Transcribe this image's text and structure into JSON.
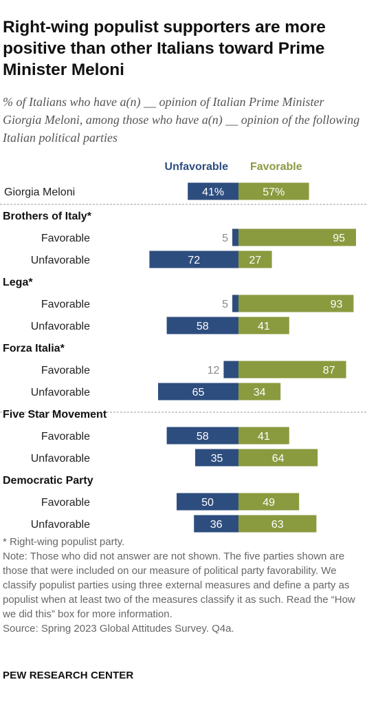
{
  "title": "Right-wing populist supporters are more positive than other Italians toward Prime Minister Meloni",
  "subtitle": "% of Italians who have a(n) __ opinion of Italian Prime Minister Giorgia Meloni, among those who have a(n) __ opinion of the following Italian political parties",
  "colors": {
    "unfavorable": "#2e4d7f",
    "favorable": "#8a9a3f",
    "divider": "#9a9a9a"
  },
  "chart_data": {
    "type": "bar",
    "orientation": "diverging-horizontal",
    "legend": [
      "Unfavorable",
      "Favorable"
    ],
    "total": {
      "label": "Giorgia Meloni",
      "unfavorable": 41,
      "favorable": 57,
      "unfavorable_text": "41%",
      "favorable_text": "57%"
    },
    "groups": [
      {
        "name": "Brothers of Italy*",
        "rows": [
          {
            "label": "Favorable",
            "unfavorable": 5,
            "favorable": 95
          },
          {
            "label": "Unfavorable",
            "unfavorable": 72,
            "favorable": 27
          }
        ]
      },
      {
        "name": "Lega*",
        "rows": [
          {
            "label": "Favorable",
            "unfavorable": 5,
            "favorable": 93
          },
          {
            "label": "Unfavorable",
            "unfavorable": 58,
            "favorable": 41
          }
        ]
      },
      {
        "name": "Forza Italia*",
        "rows": [
          {
            "label": "Favorable",
            "unfavorable": 12,
            "favorable": 87
          },
          {
            "label": "Unfavorable",
            "unfavorable": 65,
            "favorable": 34
          }
        ]
      },
      {
        "name": "Five Star Movement",
        "rows": [
          {
            "label": "Favorable",
            "unfavorable": 58,
            "favorable": 41
          },
          {
            "label": "Unfavorable",
            "unfavorable": 35,
            "favorable": 64
          }
        ]
      },
      {
        "name": "Democratic Party",
        "rows": [
          {
            "label": "Favorable",
            "unfavorable": 50,
            "favorable": 49
          },
          {
            "label": "Unfavorable",
            "unfavorable": 36,
            "favorable": 63
          }
        ]
      }
    ]
  },
  "notes": {
    "asterisk": "* Right-wing populist party.",
    "note": "Note: Those who did not answer are not shown. The five parties shown are those that were included on our measure of political party favorability. We classify populist parties using three external measures and define a party as populist when at least two of the measures classify it as such. Read the “How we did this” box for more information.",
    "source": "Source: Spring 2023 Global Attitudes Survey. Q4a."
  },
  "footer": "PEW RESEARCH CENTER"
}
